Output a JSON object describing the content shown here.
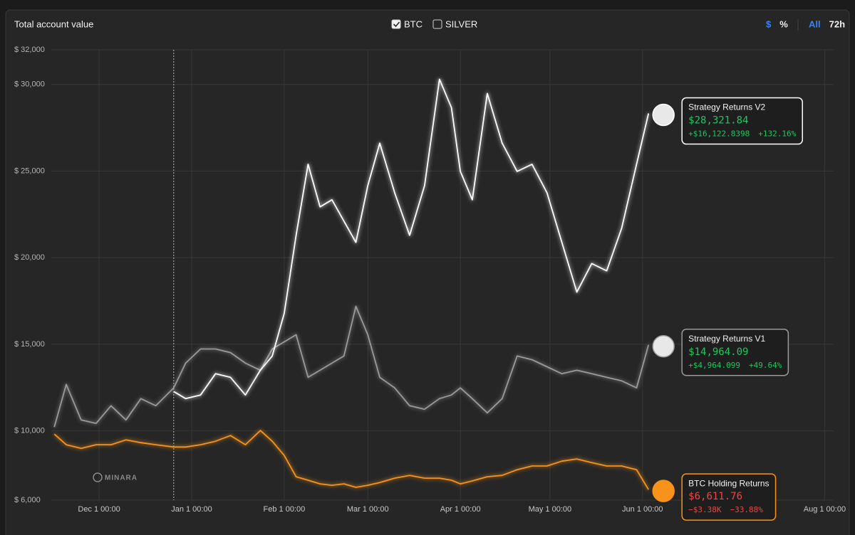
{
  "chart_data": {
    "type": "line",
    "title": "Total account value",
    "asset_toggles": [
      {
        "label": "BTC",
        "checked": true
      },
      {
        "label": "SILVER",
        "checked": false
      }
    ],
    "unit_toggles": [
      "$",
      "%"
    ],
    "range_toggles": [
      "All",
      "72h"
    ],
    "watermark": "MINARA",
    "x": [
      "Nov 16",
      "Nov 20",
      "Nov 25",
      "Nov 30",
      "Dec 5",
      "Dec 10",
      "Dec 15",
      "Dec 20",
      "Dec 26",
      "Dec 30",
      "Jan 4",
      "Jan 9",
      "Jan 14",
      "Jan 19",
      "Jan 24",
      "Jan 28",
      "Feb 1",
      "Feb 5",
      "Feb 9",
      "Feb 13",
      "Feb 17",
      "Feb 21",
      "Feb 25",
      "Mar 1",
      "Mar 5",
      "Mar 10",
      "Mar 15",
      "Mar 20",
      "Mar 25",
      "Mar 29",
      "Apr 1",
      "Apr 5",
      "Apr 10",
      "Apr 15",
      "Apr 20",
      "Apr 25",
      "Apr 30",
      "May 5",
      "May 10",
      "May 15",
      "May 20",
      "May 25",
      "May 30",
      "Jun 3"
    ],
    "series": [
      {
        "name": "Strategy Returns V2",
        "color": "#ffffff",
        "label_color": "#22c55e",
        "end_label": "$28,321.84",
        "change": "+$16,122.8398",
        "change_pct": "+132.16%",
        "values": [
          null,
          null,
          null,
          null,
          null,
          null,
          null,
          null,
          12270,
          11860,
          12070,
          13300,
          13090,
          12070,
          13500,
          14320,
          16780,
          21290,
          25390,
          22930,
          23340,
          22110,
          20880,
          24160,
          26610,
          23750,
          21290,
          24160,
          30300,
          28660,
          24980,
          23340,
          29480,
          26610,
          24980,
          25390,
          23750,
          20880,
          18010,
          19660,
          19240,
          21700,
          25390,
          28321.84
        ]
      },
      {
        "name": "Strategy Returns V1",
        "color": "#9a9a9a",
        "label_color": "#22c55e",
        "end_label": "$14,964.09",
        "change": "+$4,964.099",
        "change_pct": "+49.64%",
        "values": [
          10220,
          12680,
          10630,
          10430,
          11450,
          10630,
          11860,
          11450,
          12480,
          13910,
          14730,
          14730,
          14520,
          13910,
          13500,
          14730,
          15140,
          15550,
          13090,
          13500,
          13910,
          14320,
          17190,
          15550,
          13090,
          12480,
          11450,
          11250,
          11860,
          12070,
          12480,
          11860,
          11040,
          11860,
          14320,
          14110,
          13700,
          13300,
          13500,
          13300,
          13090,
          12890,
          12480,
          14964.09
        ]
      },
      {
        "name": "BTC Holding Returns",
        "color": "#f7931a",
        "label_color": "#ef4444",
        "end_label": "$6,611.76",
        "change": "−$3.38K",
        "change_pct": "−33.88%",
        "values": [
          9810,
          9200,
          8990,
          9200,
          9200,
          9480,
          9320,
          9200,
          9070,
          9070,
          9200,
          9400,
          9730,
          9200,
          10020,
          9400,
          8580,
          7350,
          7150,
          6940,
          6860,
          6940,
          6740,
          6860,
          7020,
          7270,
          7430,
          7270,
          7270,
          7150,
          6940,
          7110,
          7350,
          7430,
          7760,
          7970,
          7970,
          8250,
          8380,
          8170,
          7970,
          7970,
          7760,
          6611.76
        ]
      }
    ],
    "xlim": [
      "Nov 15",
      "Aug 4"
    ],
    "xticks": [
      {
        "value": "Dec 1",
        "label": "Dec 1 00:00"
      },
      {
        "value": "Jan 1",
        "label": "Jan 1 00:00"
      },
      {
        "value": "Feb 1",
        "label": "Feb 1 00:00"
      },
      {
        "value": "Mar 1",
        "label": "Mar 1 00:00"
      },
      {
        "value": "Apr 1",
        "label": "Apr 1 00:00"
      },
      {
        "value": "May 1",
        "label": "May 1 00:00"
      },
      {
        "value": "Jun 1",
        "label": "Jun 1 00:00"
      },
      {
        "value": "Aug 1",
        "label": "Aug 1 00:00"
      }
    ],
    "ylim": [
      6000,
      32000
    ],
    "yticks": [
      {
        "value": 6000,
        "label": "$ 6,000"
      },
      {
        "value": 10000,
        "label": "$ 10,000"
      },
      {
        "value": 15000,
        "label": "$ 15,000"
      },
      {
        "value": 20000,
        "label": "$ 20,000"
      },
      {
        "value": 25000,
        "label": "$ 25,000"
      },
      {
        "value": 30000,
        "label": "$ 30,000"
      },
      {
        "value": 32000,
        "label": "$ 32,000"
      }
    ],
    "grid": true
  }
}
